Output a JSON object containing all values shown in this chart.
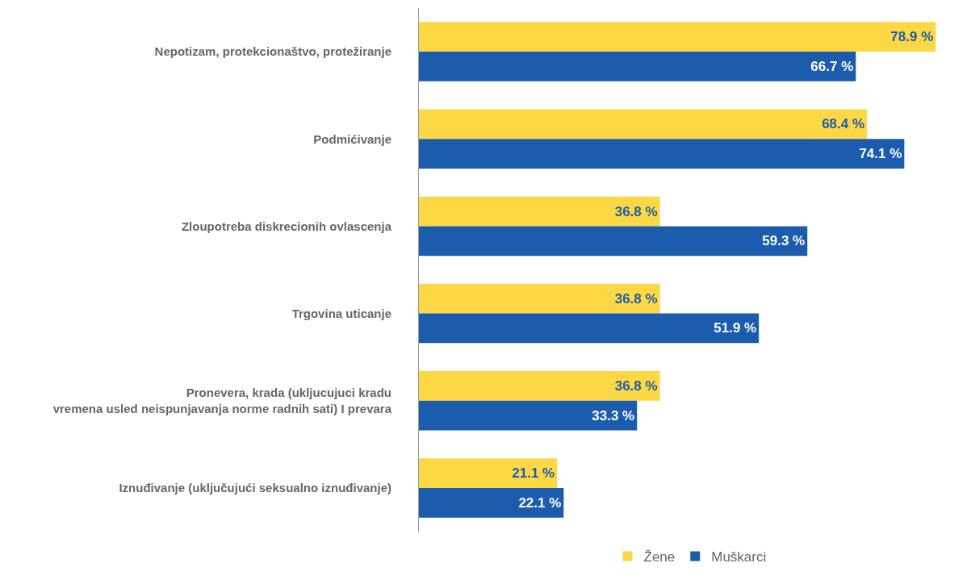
{
  "chart_data": {
    "type": "bar",
    "orientation": "horizontal",
    "categories": [
      "Nepotizam, protekcionaštvo, protežiranje",
      "Podmićivanje",
      "Zloupotreba diskrecionih ovlascenja",
      "Trgovina uticanje",
      "Pronevera, krada (ukljucujuci kradu\nvremena usled neispunjavanja norme radnih sati) I prevara",
      "Iznuđivanje (uključujući seksualno iznuđivanje)"
    ],
    "series": [
      {
        "name": "Žene",
        "color": "#fdd744",
        "values": [
          78.9,
          68.4,
          36.8,
          36.8,
          36.8,
          21.1
        ],
        "value_labels": [
          "78.9 %",
          "68.4 %",
          "36.8 %",
          "36.8 %",
          "36.8 %",
          "21.1 %"
        ]
      },
      {
        "name": "Muškarci",
        "color": "#1b5cad",
        "values": [
          66.7,
          74.1,
          59.3,
          51.9,
          33.3,
          22.1
        ],
        "value_labels": [
          "66.7 %",
          "74.1 %",
          "59.3 %",
          "51.9 %",
          "33.3 %",
          "22.1 %"
        ]
      }
    ],
    "tick_labels": "y",
    "legend": "bottom"
  }
}
